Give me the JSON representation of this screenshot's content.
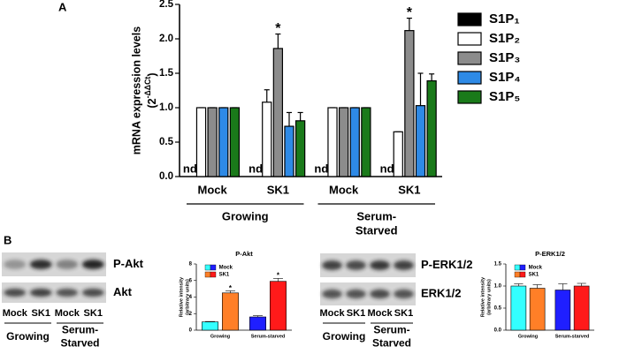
{
  "panels": [
    "A",
    "B"
  ],
  "chart_data": [
    {
      "type": "bar",
      "y_label": [
        "mRNA expression levels"
      ],
      "y_label_formula": [
        "(2",
        "-ΔΔCt",
        ")"
      ],
      "categories": [
        "Mock",
        "SK1",
        "Mock",
        "SK1"
      ],
      "groups": [
        [
          "Growing"
        ],
        [
          "Serum-",
          "Starved"
        ]
      ],
      "series": [
        {
          "name": "S1P₁",
          "color": "#000000",
          "values": [
            null,
            null,
            null,
            null
          ],
          "value_labels": [
            "nd",
            "nd",
            "nd",
            "nd"
          ]
        },
        {
          "name": "S1P₂",
          "color": "#ffffff",
          "values": [
            1.0,
            1.08,
            1.0,
            0.65
          ],
          "errors": [
            0,
            0.18,
            0,
            0
          ]
        },
        {
          "name": "S1P₃",
          "color": "#8c8c8c",
          "values": [
            1.0,
            1.86,
            1.0,
            2.12
          ],
          "errors": [
            0,
            0.21,
            0,
            0.18
          ],
          "markers": [
            null,
            "*",
            null,
            "*"
          ]
        },
        {
          "name": "S1P₄",
          "color": "#2e8ae6",
          "values": [
            1.0,
            0.73,
            1.0,
            1.03
          ],
          "errors": [
            0,
            0.2,
            0,
            0.47
          ]
        },
        {
          "name": "S1P₅",
          "color": "#1a7a1a",
          "values": [
            1.0,
            0.81,
            1.0,
            1.39
          ],
          "errors": [
            0,
            0.12,
            0,
            0.1
          ]
        }
      ],
      "ylim": [
        0,
        2.5
      ],
      "yticks": [
        {
          "value": 0,
          "label": "0.0"
        },
        {
          "value": 0.5,
          "label": "0.5"
        },
        {
          "value": 1,
          "label": "1.0"
        },
        {
          "value": 1.5,
          "label": "1.5"
        },
        {
          "value": 2,
          "label": "2.0"
        },
        {
          "value": 2.5,
          "label": "2.5"
        }
      ]
    },
    {
      "type": "bar",
      "title": "P-Akt",
      "y_label": [
        "Relative intensity",
        "(arbitrary units)"
      ],
      "categories": [
        "Growing",
        "Serum-starved"
      ],
      "series": [
        {
          "name": "Mock",
          "colors": [
            "#33ffff",
            "#1f1fff"
          ],
          "values": [
            1.0,
            1.6
          ],
          "errors": [
            0.05,
            0.15
          ]
        },
        {
          "name": "SK1",
          "colors": [
            "#ff7f27",
            "#ff1a1a"
          ],
          "values": [
            4.5,
            5.9
          ],
          "errors": [
            0.25,
            0.35
          ],
          "markers": [
            "*",
            "*"
          ]
        }
      ],
      "ylim": [
        0,
        8
      ],
      "yticks": [
        0,
        2,
        4,
        6,
        8
      ]
    },
    {
      "type": "bar",
      "title": "P-ERK1/2",
      "y_label": [
        "Relative intensity",
        "(arbitrary units)"
      ],
      "categories": [
        "Growing",
        "Serum-starved"
      ],
      "series": [
        {
          "name": "Mock",
          "colors": [
            "#33ffff",
            "#1f1fff"
          ],
          "values": [
            1.0,
            0.91
          ],
          "errors": [
            0.05,
            0.14
          ]
        },
        {
          "name": "SK1",
          "colors": [
            "#ff7f27",
            "#ff1a1a"
          ],
          "values": [
            0.95,
            1.0
          ],
          "errors": [
            0.08,
            0.06
          ]
        }
      ],
      "ylim": [
        0,
        1.5
      ],
      "yticks": [
        {
          "value": 0,
          "label": "0.0"
        },
        {
          "value": 0.5,
          "label": "0.5"
        },
        {
          "value": 1,
          "label": "1.0"
        },
        {
          "value": 1.5,
          "label": "1.5"
        }
      ]
    }
  ],
  "blots": [
    {
      "bands": [
        "P-Akt",
        "Akt"
      ],
      "lanes": [
        "Mock",
        "SK1",
        "Mock",
        "SK1"
      ],
      "groups": [
        [
          "Growing"
        ],
        [
          "Serum-",
          "Starved"
        ]
      ]
    },
    {
      "bands": [
        "P-ERK1/2",
        "ERK1/2"
      ],
      "lanes": [
        "Mock",
        "SK1",
        "Mock",
        "SK1"
      ],
      "groups": [
        [
          "Growing"
        ],
        [
          "Serum-",
          "Starved"
        ]
      ]
    }
  ]
}
